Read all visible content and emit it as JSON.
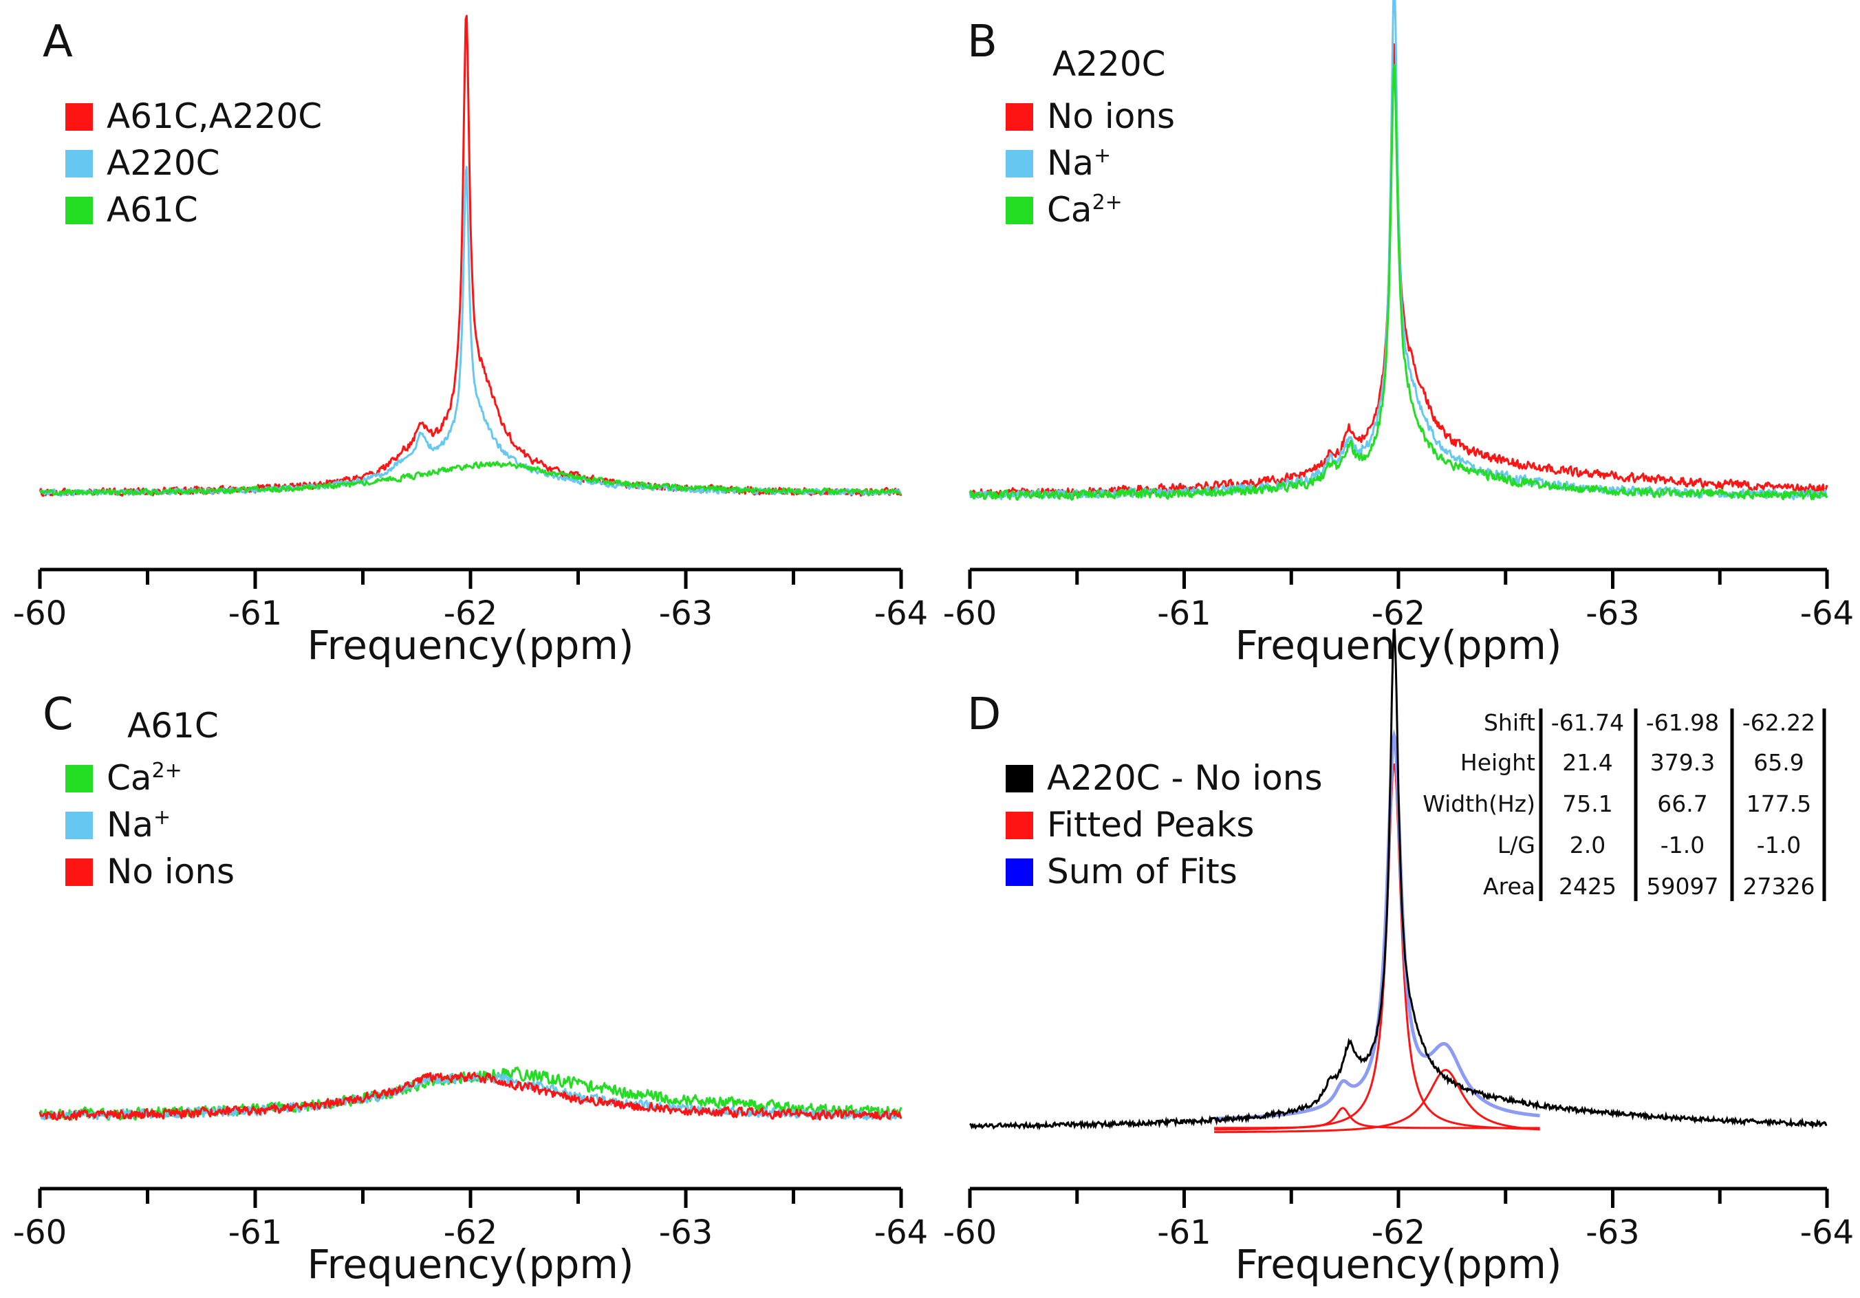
{
  "figure": {
    "x_ticks": [
      -60,
      -61,
      -62,
      -63,
      -64
    ],
    "panels_order": [
      "A",
      "B",
      "C",
      "D"
    ]
  },
  "chart_data": [
    {
      "panel": "A",
      "type": "line",
      "title": "",
      "xlabel": "Frequency(ppm)",
      "ylabel": "",
      "xlim": [
        -60,
        -64
      ],
      "x_ticks": [
        "-60",
        "-61",
        "-62",
        "-63",
        "-64"
      ],
      "ylim": [
        0,
        100
      ],
      "legend": {
        "placement": "top-left"
      },
      "series": [
        {
          "name": "A61C,A220C",
          "color": "#ff1414",
          "noise": 0.9,
          "peaks": [
            {
              "c": -61.77,
              "h": 7.0,
              "w": 0.03
            },
            {
              "c": -61.68,
              "h": 2.5,
              "w": 0.05
            },
            {
              "c": -61.98,
              "h": 92.0,
              "w": 0.018
            },
            {
              "c": -62.05,
              "h": 17.0,
              "w": 0.1
            },
            {
              "c": -61.9,
              "h": 6.0,
              "w": 0.25
            },
            {
              "c": -62.1,
              "h": 4.0,
              "w": 0.45
            }
          ]
        },
        {
          "name": "A220C",
          "color": "#66c8f0",
          "noise": 0.7,
          "peaks": [
            {
              "c": -61.77,
              "h": 6.0,
              "w": 0.03
            },
            {
              "c": -61.68,
              "h": 2.0,
              "w": 0.05
            },
            {
              "c": -61.98,
              "h": 62.0,
              "w": 0.016
            },
            {
              "c": -62.03,
              "h": 10.0,
              "w": 0.09
            },
            {
              "c": -61.9,
              "h": 5.0,
              "w": 0.25
            },
            {
              "c": -62.1,
              "h": 3.5,
              "w": 0.45
            }
          ]
        },
        {
          "name": "A61C",
          "color": "#22dd22",
          "noise": 0.7,
          "peaks": [
            {
              "c": -62.1,
              "h": 7.0,
              "w": 0.45
            }
          ]
        }
      ]
    },
    {
      "panel": "B",
      "type": "line",
      "title": "A220C",
      "xlabel": "Frequency(ppm)",
      "ylabel": "",
      "xlim": [
        -60,
        -64
      ],
      "x_ticks": [
        "-60",
        "-61",
        "-62",
        "-63",
        "-64"
      ],
      "ylim": [
        0,
        100
      ],
      "legend": {
        "placement": "top-left"
      },
      "series": [
        {
          "name": "No ions",
          "color": "#ff1414",
          "noise": 1.0,
          "peaks": [
            {
              "c": -61.77,
              "h": 6.0,
              "w": 0.03
            },
            {
              "c": -61.68,
              "h": 3.0,
              "w": 0.03
            },
            {
              "c": -61.98,
              "h": 76.0,
              "w": 0.02
            },
            {
              "c": -62.04,
              "h": 20.0,
              "w": 0.12
            },
            {
              "c": -62.2,
              "h": 5.0,
              "w": 0.6
            },
            {
              "c": -62.8,
              "h": 2.5,
              "w": 1.0
            }
          ]
        },
        {
          "name": "Na",
          "sup": "+",
          "color": "#66c8f0",
          "noise": 1.0,
          "peaks": [
            {
              "c": -61.77,
              "h": 6.0,
              "w": 0.03
            },
            {
              "c": -61.68,
              "h": 3.0,
              "w": 0.03
            },
            {
              "c": -61.98,
              "h": 92.0,
              "w": 0.018
            },
            {
              "c": -62.03,
              "h": 18.0,
              "w": 0.11
            },
            {
              "c": -62.15,
              "h": 5.0,
              "w": 0.5
            }
          ]
        },
        {
          "name": "Ca",
          "sup": "2+",
          "color": "#22dd22",
          "noise": 1.0,
          "peaks": [
            {
              "c": -61.77,
              "h": 6.0,
              "w": 0.03
            },
            {
              "c": -61.68,
              "h": 3.0,
              "w": 0.03
            },
            {
              "c": -61.98,
              "h": 76.0,
              "w": 0.02
            },
            {
              "c": -62.02,
              "h": 15.0,
              "w": 0.1
            },
            {
              "c": -62.2,
              "h": 4.0,
              "w": 0.5
            }
          ]
        }
      ]
    },
    {
      "panel": "C",
      "type": "line",
      "title": "A61C",
      "xlabel": "Frequency(ppm)",
      "ylabel": "",
      "xlim": [
        -60,
        -64
      ],
      "x_ticks": [
        "-60",
        "-61",
        "-62",
        "-63",
        "-64"
      ],
      "ylim": [
        0,
        100
      ],
      "legend": {
        "placement": "top-left"
      },
      "series": [
        {
          "name": "Ca",
          "sup": "2+",
          "color": "#22dd22",
          "noise": 4.0,
          "peaks": [
            {
              "c": -61.78,
              "h": 3.0,
              "w": 0.08
            },
            {
              "c": -62.15,
              "h": 28.0,
              "w": 0.55
            },
            {
              "c": -63.0,
              "h": 4.0,
              "w": 0.8
            }
          ]
        },
        {
          "name": "Na",
          "sup": "+",
          "color": "#66c8f0",
          "noise": 3.2,
          "peaks": [
            {
              "c": -61.78,
              "h": 4.0,
              "w": 0.08
            },
            {
              "c": -62.05,
              "h": 27.0,
              "w": 0.5
            }
          ]
        },
        {
          "name": "No ions",
          "color": "#ff1414",
          "noise": 3.2,
          "peaks": [
            {
              "c": -61.78,
              "h": 4.0,
              "w": 0.08
            },
            {
              "c": -62.0,
              "h": 27.0,
              "w": 0.48
            }
          ]
        }
      ]
    },
    {
      "panel": "D",
      "type": "line",
      "title": "",
      "xlabel": "Frequency(ppm)",
      "ylabel": "",
      "xlim": [
        -60,
        -64
      ],
      "x_ticks": [
        "-60",
        "-61",
        "-62",
        "-63",
        "-64"
      ],
      "ylim": [
        0,
        100
      ],
      "legend": {
        "placement": "top-left"
      },
      "fit_range_ppm": [
        -61.14,
        -62.66
      ],
      "series": [
        {
          "name": "A220C - No ions",
          "color": "#000000",
          "noise": 0.5,
          "peaks": [
            {
              "c": -61.77,
              "h": 8.0,
              "w": 0.035
            },
            {
              "c": -61.68,
              "h": 3.5,
              "w": 0.03
            },
            {
              "c": -61.98,
              "h": 92.0,
              "w": 0.024
            },
            {
              "c": -62.02,
              "h": 16.0,
              "w": 0.12
            },
            {
              "c": -62.2,
              "h": 5.0,
              "w": 0.55
            },
            {
              "c": -62.8,
              "h": 1.5,
              "w": 0.8
            },
            {
              "c": -61.78,
              "h": 3.0,
              "w": 0.08
            }
          ]
        },
        {
          "name": "Fitted Peaks",
          "color": "#ff1414"
        },
        {
          "name": "Sum of Fits",
          "color": "#0000ff"
        }
      ],
      "fitted_peaks": [
        {
          "shift": -61.74,
          "height_rel": 4.5,
          "width_ppm": 0.04
        },
        {
          "shift": -61.98,
          "height_rel": 82.0,
          "width_ppm": 0.04
        },
        {
          "shift": -62.22,
          "height_rel": 14.0,
          "width_ppm": 0.1
        }
      ],
      "fit_table": {
        "row_labels": [
          "Shift",
          "Height",
          "Width(Hz)",
          "L/G",
          "Area"
        ],
        "columns": [
          [
            "-61.74",
            "21.4",
            "75.1",
            "2.0",
            "2425"
          ],
          [
            "-61.98",
            "379.3",
            "66.7",
            "-1.0",
            "59097"
          ],
          [
            "-62.22",
            "65.9",
            "177.5",
            "-1.0",
            "27326"
          ]
        ]
      }
    }
  ]
}
